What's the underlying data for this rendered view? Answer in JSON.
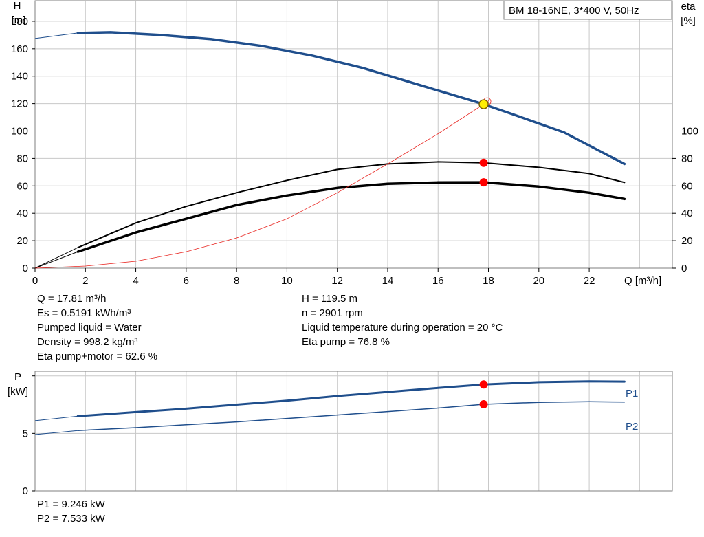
{
  "chart_data": [
    {
      "type": "line",
      "title": "BM  18-16NE, 3*400 V, 50Hz",
      "xlabel": "Q [m³/h]",
      "xlim": [
        0,
        25.3
      ],
      "xticks": [
        0,
        2,
        4,
        6,
        8,
        10,
        12,
        14,
        16,
        18,
        20,
        22
      ],
      "y_axes": {
        "left": {
          "label_line1": "H",
          "label_line2": "[m]",
          "lim": [
            0,
            195
          ],
          "ticks": [
            0,
            20,
            40,
            60,
            80,
            100,
            120,
            140,
            160,
            180
          ]
        },
        "right": {
          "label_line1": "eta",
          "label_line2": "[%]",
          "lim": [
            0,
            195
          ],
          "ticks": [
            0,
            20,
            40,
            60,
            80,
            100
          ]
        }
      },
      "grid": true,
      "series": [
        {
          "axis": "left",
          "color": "#1f4e8c",
          "width": 3.5,
          "points": [
            [
              1.7,
              171.5
            ],
            [
              3,
              172
            ],
            [
              5,
              170
            ],
            [
              7,
              167
            ],
            [
              9,
              162
            ],
            [
              11,
              155
            ],
            [
              13,
              146
            ],
            [
              15,
              135
            ],
            [
              17,
              124
            ],
            [
              17.81,
              119.5
            ],
            [
              19,
              112
            ],
            [
              21,
              99
            ],
            [
              23.4,
              76
            ]
          ],
          "extension": [
            [
              0,
              167.5
            ],
            [
              1.7,
              171.5
            ]
          ]
        },
        {
          "axis": "right",
          "color": "#000000",
          "width": 2,
          "points": [
            [
              1.7,
              15
            ],
            [
              4,
              33
            ],
            [
              6,
              45
            ],
            [
              8,
              55
            ],
            [
              10,
              64
            ],
            [
              12,
              72
            ],
            [
              14,
              76
            ],
            [
              16,
              77.5
            ],
            [
              17.81,
              76.8
            ],
            [
              20,
              73.5
            ],
            [
              22,
              69
            ],
            [
              23.4,
              62.5
            ]
          ],
          "extension": [
            [
              0,
              0
            ],
            [
              1.7,
              15
            ]
          ]
        },
        {
          "axis": "right",
          "color": "#000000",
          "width": 3.5,
          "points": [
            [
              1.7,
              12
            ],
            [
              4,
              26
            ],
            [
              6,
              36
            ],
            [
              8,
              46
            ],
            [
              10,
              53
            ],
            [
              12,
              58.5
            ],
            [
              14,
              61.5
            ],
            [
              16,
              62.5
            ],
            [
              17.81,
              62.6
            ],
            [
              20,
              59.5
            ],
            [
              22,
              55
            ],
            [
              23.4,
              50.5
            ]
          ],
          "extension": [
            [
              0,
              0
            ],
            [
              1.7,
              12
            ]
          ]
        },
        {
          "axis": "left",
          "color": "#e8211c",
          "width": 0.8,
          "points": [
            [
              0,
              0
            ],
            [
              2,
              1.5
            ],
            [
              4,
              5
            ],
            [
              6,
              12
            ],
            [
              8,
              22
            ],
            [
              10,
              36
            ],
            [
              12,
              55
            ],
            [
              14,
              76
            ],
            [
              16,
              98
            ],
            [
              17.81,
              119.5
            ],
            [
              18,
              122
            ]
          ]
        }
      ],
      "operating_points": [
        {
          "x": 17.81,
          "y": 119.5,
          "style": "duty"
        },
        {
          "x": 17.81,
          "y": 76.8,
          "style": "red"
        },
        {
          "x": 17.81,
          "y": 62.6,
          "style": "red"
        }
      ]
    },
    {
      "type": "line",
      "ylabel_line1": "P",
      "ylabel_line2": "[kW]",
      "xlim": [
        0,
        25.3
      ],
      "ylim": [
        0,
        10.4
      ],
      "yticks": [
        0,
        5
      ],
      "grid": true,
      "series": [
        {
          "name": "P1",
          "color": "#1f4e8c",
          "width": 3,
          "points": [
            [
              1.7,
              6.5
            ],
            [
              4,
              6.85
            ],
            [
              6,
              7.15
            ],
            [
              8,
              7.5
            ],
            [
              10,
              7.85
            ],
            [
              12,
              8.25
            ],
            [
              14,
              8.6
            ],
            [
              16,
              8.95
            ],
            [
              17.81,
              9.246
            ],
            [
              20,
              9.45
            ],
            [
              22,
              9.52
            ],
            [
              23.4,
              9.5
            ]
          ],
          "extension": [
            [
              0,
              6.1
            ],
            [
              1.7,
              6.5
            ]
          ]
        },
        {
          "name": "P2",
          "color": "#1f4e8c",
          "width": 1.5,
          "points": [
            [
              1.7,
              5.25
            ],
            [
              4,
              5.5
            ],
            [
              6,
              5.75
            ],
            [
              8,
              6.0
            ],
            [
              10,
              6.3
            ],
            [
              12,
              6.6
            ],
            [
              14,
              6.9
            ],
            [
              16,
              7.2
            ],
            [
              17.81,
              7.533
            ],
            [
              20,
              7.7
            ],
            [
              22,
              7.75
            ],
            [
              23.4,
              7.72
            ]
          ],
          "extension": [
            [
              0,
              4.9
            ],
            [
              1.7,
              5.25
            ]
          ]
        }
      ],
      "operating_points": [
        {
          "x": 17.81,
          "y": 9.246,
          "style": "red"
        },
        {
          "x": 17.81,
          "y": 7.533,
          "style": "red"
        }
      ]
    }
  ],
  "info_left": [
    "Q = 17.81 m³/h",
    "Es = 0.5191 kWh/m³",
    "Pumped liquid = Water",
    "Density = 998.2 kg/m³",
    "Eta pump+motor = 62.6 %"
  ],
  "info_right": [
    "H = 119.5 m",
    "n = 2901 rpm",
    "Liquid temperature during operation = 20 °C",
    "Eta pump = 76.8 %"
  ],
  "power_info": [
    "P1 = 9.246 kW",
    "P2 = 7.533 kW"
  ]
}
